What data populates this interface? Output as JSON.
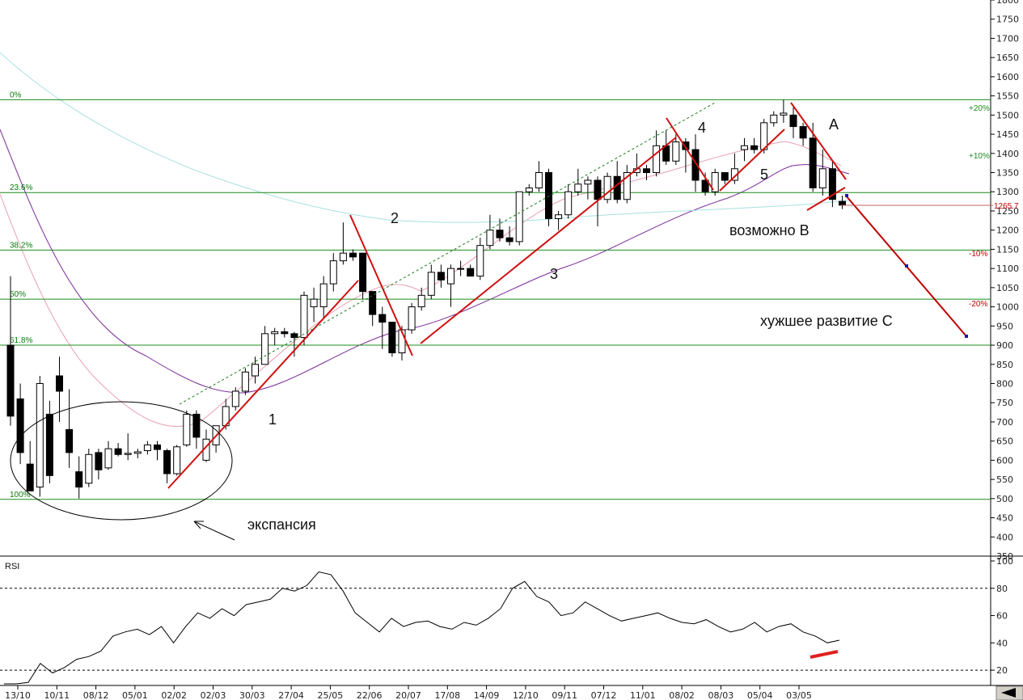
{
  "chart_data": [
    {
      "type": "candlestick",
      "title": "",
      "ylim": [
        350,
        1800
      ],
      "y_ticks": [
        350,
        400,
        450,
        500,
        550,
        600,
        650,
        700,
        750,
        800,
        850,
        900,
        950,
        1000,
        1050,
        1100,
        1150,
        1200,
        1250,
        1300,
        1350,
        1400,
        1450,
        1500,
        1550,
        1600,
        1650,
        1700,
        1750,
        1800
      ],
      "y_tick_labels": [
        "350",
        "400",
        "450",
        "500",
        "550",
        "600",
        "650",
        "700",
        "750",
        "800",
        "850",
        "900",
        "950",
        "1000",
        "1050",
        "1100",
        "1150",
        "1200",
        "1250",
        "1300",
        "1350",
        "1400",
        "1450",
        "1500",
        "1550",
        "1600",
        "1650",
        "1700",
        "1750",
        "1800"
      ],
      "x_tick_labels": [
        "13/10",
        "10/11",
        "08/12",
        "05/01",
        "02/02",
        "02/03",
        "30/03",
        "27/04",
        "25/05",
        "22/06",
        "20/07",
        "17/08",
        "14/09",
        "12/10",
        "09/11",
        "07/12",
        "11/01",
        "08/02",
        "08/03",
        "05/04",
        "03/05"
      ],
      "last_price_label": "1265.7",
      "grid": true,
      "candles": [
        {
          "o": 900,
          "h": 1080,
          "l": 690,
          "c": 715
        },
        {
          "o": 760,
          "h": 800,
          "l": 590,
          "c": 620
        },
        {
          "o": 590,
          "h": 650,
          "l": 520,
          "c": 520
        },
        {
          "o": 530,
          "h": 820,
          "l": 505,
          "c": 800
        },
        {
          "o": 720,
          "h": 755,
          "l": 540,
          "c": 560
        },
        {
          "o": 820,
          "h": 870,
          "l": 700,
          "c": 780
        },
        {
          "o": 680,
          "h": 785,
          "l": 580,
          "c": 620
        },
        {
          "o": 570,
          "h": 610,
          "l": 500,
          "c": 530
        },
        {
          "o": 540,
          "h": 630,
          "l": 530,
          "c": 615
        },
        {
          "o": 620,
          "h": 630,
          "l": 550,
          "c": 575
        },
        {
          "o": 580,
          "h": 650,
          "l": 575,
          "c": 630
        },
        {
          "o": 630,
          "h": 645,
          "l": 610,
          "c": 615
        },
        {
          "o": 615,
          "h": 670,
          "l": 600,
          "c": 618
        },
        {
          "o": 618,
          "h": 630,
          "l": 605,
          "c": 622
        },
        {
          "o": 625,
          "h": 650,
          "l": 615,
          "c": 640
        },
        {
          "o": 640,
          "h": 650,
          "l": 600,
          "c": 628
        },
        {
          "o": 625,
          "h": 630,
          "l": 540,
          "c": 565
        },
        {
          "o": 565,
          "h": 640,
          "l": 560,
          "c": 635
        },
        {
          "o": 640,
          "h": 730,
          "l": 635,
          "c": 720
        },
        {
          "o": 720,
          "h": 730,
          "l": 630,
          "c": 660
        },
        {
          "o": 600,
          "h": 680,
          "l": 595,
          "c": 655
        },
        {
          "o": 640,
          "h": 690,
          "l": 620,
          "c": 690
        },
        {
          "o": 690,
          "h": 760,
          "l": 680,
          "c": 740
        },
        {
          "o": 740,
          "h": 790,
          "l": 730,
          "c": 780
        },
        {
          "o": 780,
          "h": 840,
          "l": 770,
          "c": 830
        },
        {
          "o": 820,
          "h": 870,
          "l": 800,
          "c": 850
        },
        {
          "o": 850,
          "h": 950,
          "l": 850,
          "c": 930
        },
        {
          "o": 930,
          "h": 945,
          "l": 900,
          "c": 935
        },
        {
          "o": 935,
          "h": 945,
          "l": 920,
          "c": 930
        },
        {
          "o": 930,
          "h": 935,
          "l": 870,
          "c": 920
        },
        {
          "o": 920,
          "h": 1040,
          "l": 900,
          "c": 1030
        },
        {
          "o": 1000,
          "h": 1050,
          "l": 960,
          "c": 1020
        },
        {
          "o": 1000,
          "h": 1080,
          "l": 970,
          "c": 1060
        },
        {
          "o": 1060,
          "h": 1140,
          "l": 1040,
          "c": 1120
        },
        {
          "o": 1120,
          "h": 1220,
          "l": 1110,
          "c": 1140
        },
        {
          "o": 1140,
          "h": 1150,
          "l": 1120,
          "c": 1130
        },
        {
          "o": 1140,
          "h": 1140,
          "l": 1020,
          "c": 1040
        },
        {
          "o": 1040,
          "h": 1040,
          "l": 950,
          "c": 980
        },
        {
          "o": 980,
          "h": 1000,
          "l": 890,
          "c": 960
        },
        {
          "o": 960,
          "h": 960,
          "l": 870,
          "c": 880
        },
        {
          "o": 880,
          "h": 950,
          "l": 860,
          "c": 940
        },
        {
          "o": 940,
          "h": 1010,
          "l": 930,
          "c": 1000
        },
        {
          "o": 1000,
          "h": 1050,
          "l": 990,
          "c": 1030
        },
        {
          "o": 1030,
          "h": 1110,
          "l": 1020,
          "c": 1090
        },
        {
          "o": 1090,
          "h": 1110,
          "l": 1050,
          "c": 1070
        },
        {
          "o": 1060,
          "h": 1110,
          "l": 1000,
          "c": 1100
        },
        {
          "o": 1100,
          "h": 1120,
          "l": 1080,
          "c": 1100
        },
        {
          "o": 1100,
          "h": 1110,
          "l": 1080,
          "c": 1080
        },
        {
          "o": 1080,
          "h": 1180,
          "l": 1070,
          "c": 1160
        },
        {
          "o": 1160,
          "h": 1240,
          "l": 1150,
          "c": 1200
        },
        {
          "o": 1200,
          "h": 1230,
          "l": 1170,
          "c": 1180
        },
        {
          "o": 1180,
          "h": 1210,
          "l": 1160,
          "c": 1170
        },
        {
          "o": 1170,
          "h": 1300,
          "l": 1160,
          "c": 1300
        },
        {
          "o": 1300,
          "h": 1320,
          "l": 1290,
          "c": 1310
        },
        {
          "o": 1310,
          "h": 1380,
          "l": 1300,
          "c": 1350
        },
        {
          "o": 1350,
          "h": 1360,
          "l": 1210,
          "c": 1230
        },
        {
          "o": 1230,
          "h": 1250,
          "l": 1200,
          "c": 1240
        },
        {
          "o": 1240,
          "h": 1320,
          "l": 1230,
          "c": 1300
        },
        {
          "o": 1300,
          "h": 1360,
          "l": 1290,
          "c": 1320
        },
        {
          "o": 1320,
          "h": 1340,
          "l": 1280,
          "c": 1330
        },
        {
          "o": 1330,
          "h": 1340,
          "l": 1210,
          "c": 1280
        },
        {
          "o": 1280,
          "h": 1350,
          "l": 1270,
          "c": 1340
        },
        {
          "o": 1340,
          "h": 1380,
          "l": 1270,
          "c": 1280
        },
        {
          "o": 1280,
          "h": 1370,
          "l": 1270,
          "c": 1350
        },
        {
          "o": 1350,
          "h": 1400,
          "l": 1340,
          "c": 1360
        },
        {
          "o": 1360,
          "h": 1370,
          "l": 1330,
          "c": 1350
        },
        {
          "o": 1350,
          "h": 1460,
          "l": 1340,
          "c": 1420
        },
        {
          "o": 1420,
          "h": 1460,
          "l": 1370,
          "c": 1380
        },
        {
          "o": 1380,
          "h": 1450,
          "l": 1370,
          "c": 1430
        },
        {
          "o": 1430,
          "h": 1440,
          "l": 1350,
          "c": 1410
        },
        {
          "o": 1410,
          "h": 1450,
          "l": 1300,
          "c": 1330
        },
        {
          "o": 1330,
          "h": 1350,
          "l": 1290,
          "c": 1300
        },
        {
          "o": 1300,
          "h": 1360,
          "l": 1290,
          "c": 1350
        },
        {
          "o": 1350,
          "h": 1350,
          "l": 1320,
          "c": 1330
        },
        {
          "o": 1330,
          "h": 1400,
          "l": 1320,
          "c": 1360
        },
        {
          "o": 1410,
          "h": 1440,
          "l": 1380,
          "c": 1420
        },
        {
          "o": 1420,
          "h": 1440,
          "l": 1400,
          "c": 1410
        },
        {
          "o": 1410,
          "h": 1490,
          "l": 1400,
          "c": 1480
        },
        {
          "o": 1480,
          "h": 1510,
          "l": 1470,
          "c": 1500
        },
        {
          "o": 1500,
          "h": 1540,
          "l": 1480,
          "c": 1505
        },
        {
          "o": 1500,
          "h": 1520,
          "l": 1440,
          "c": 1470
        },
        {
          "o": 1470,
          "h": 1480,
          "l": 1420,
          "c": 1440
        },
        {
          "o": 1440,
          "h": 1480,
          "l": 1300,
          "c": 1310
        },
        {
          "o": 1310,
          "h": 1410,
          "l": 1290,
          "c": 1360
        },
        {
          "o": 1360,
          "h": 1380,
          "l": 1260,
          "c": 1280
        },
        {
          "o": 1275,
          "h": 1290,
          "l": 1255,
          "c": 1265
        }
      ],
      "fib_levels": [
        {
          "label": "0%",
          "value": 1540
        },
        {
          "label": "23.6%",
          "value": 1298
        },
        {
          "label": "38.2%",
          "value": 1148
        },
        {
          "label": "50%",
          "value": 1020
        },
        {
          "label": "61.8%",
          "value": 900
        },
        {
          "label": "100%",
          "value": 498
        }
      ],
      "pct_levels": [
        {
          "label": "+20%",
          "value": 1520
        },
        {
          "label": "+10%",
          "value": 1395
        },
        {
          "label": "-10%",
          "value": 1140
        },
        {
          "label": "-20%",
          "value": 1010
        }
      ],
      "annotations": [
        "1",
        "2",
        "3",
        "4",
        "5",
        "A",
        "возможно B",
        "хужшее развитие C",
        "экспансия"
      ]
    },
    {
      "type": "line",
      "title": "RSI",
      "ylim": [
        10,
        100
      ],
      "y_ticks": [
        20,
        40,
        60,
        80,
        100
      ],
      "y_tick_labels": [
        "20",
        "40",
        "60",
        "80",
        "100"
      ],
      "dashed_levels": [
        80,
        20
      ],
      "values": [
        10,
        10,
        11,
        25,
        18,
        22,
        28,
        30,
        34,
        45,
        48,
        50,
        46,
        52,
        40,
        52,
        62,
        58,
        65,
        60,
        68,
        70,
        72,
        80,
        78,
        82,
        92,
        90,
        78,
        62,
        55,
        48,
        58,
        52,
        55,
        56,
        52,
        50,
        55,
        53,
        58,
        65,
        80,
        85,
        74,
        70,
        60,
        62,
        70,
        65,
        60,
        56,
        58,
        60,
        62,
        58,
        55,
        54,
        57,
        52,
        48,
        50,
        55,
        48,
        52,
        54,
        48,
        45,
        40,
        42
      ]
    }
  ]
}
